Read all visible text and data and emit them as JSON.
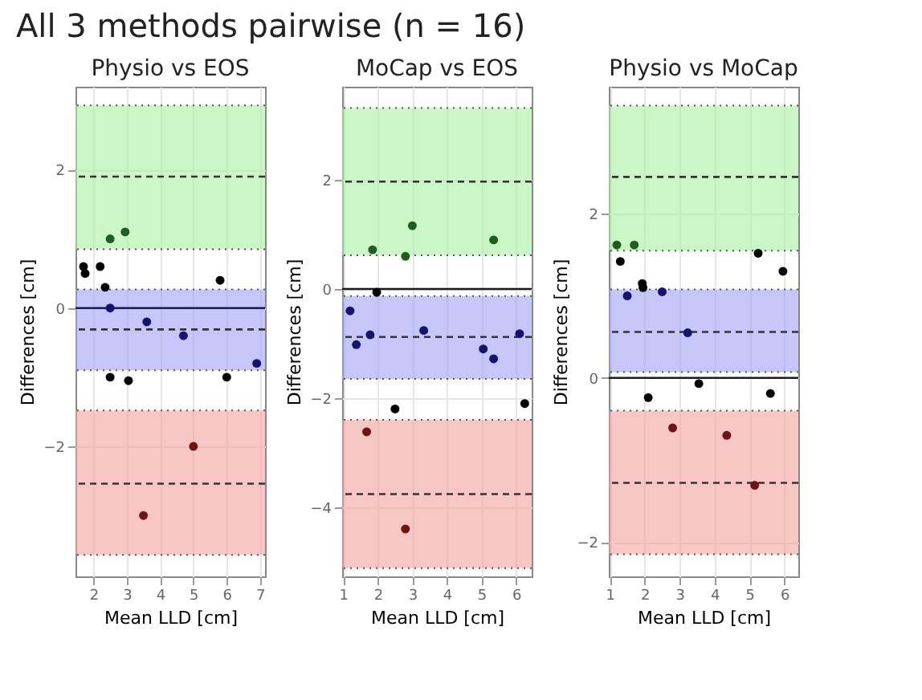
{
  "chart_data": [
    {
      "type": "scatter",
      "title": "Physio vs EOS",
      "xlabel": "Mean LLD [cm]",
      "ylabel": "Differences [cm]",
      "annotations": [
        "All 3 methods pairwise (n = 16)"
      ],
      "xlim": [
        1.46,
        7.15
      ],
      "ylim": [
        -3.88,
        3.2
      ],
      "xticks": [
        2,
        3,
        4,
        5,
        6,
        7
      ],
      "yticks": [
        -2,
        0,
        2
      ],
      "grid": true,
      "marker": "circle",
      "series": [
        {
          "color": "#000000",
          "x": [
            1.7,
            1.75,
            2.2,
            2.35,
            2.5,
            3.05,
            5.8,
            6.0
          ],
          "values": [
            0.6,
            0.5,
            0.6,
            0.3,
            -1.0,
            -1.05,
            0.4,
            -1.0
          ]
        },
        {
          "color": "#1f5e1f",
          "x": [
            2.5,
            2.95
          ],
          "values": [
            1.0,
            1.1
          ]
        },
        {
          "color": "#14146e",
          "x": [
            2.5,
            3.6,
            4.7,
            6.9
          ],
          "values": [
            0,
            -0.2,
            -0.4,
            -0.8
          ]
        },
        {
          "color": "#6e1414",
          "x": [
            5.0,
            3.5
          ],
          "values": [
            -2.0,
            -3.0
          ]
        }
      ],
      "bands": [
        {
          "axis": "y",
          "from": 0.85,
          "to": 2.93,
          "color": "#a8f0a0"
        },
        {
          "axis": "y",
          "from": -0.9,
          "to": 0.27,
          "color": "#a0a0f5"
        },
        {
          "axis": "y",
          "from": -3.57,
          "to": -1.48,
          "color": "#f5a0a0"
        }
      ],
      "ref_lines": [
        {
          "axis": "y",
          "value": 0,
          "color": "#1a1a5a",
          "line_style": "solid"
        },
        {
          "axis": "y",
          "value": 1.9,
          "color": "#333333",
          "line_style": "dashed"
        },
        {
          "axis": "y",
          "value": -0.31,
          "color": "#333333",
          "line_style": "dashed"
        },
        {
          "axis": "y",
          "value": -2.54,
          "color": "#333333",
          "line_style": "dashed"
        }
      ]
    },
    {
      "type": "scatter",
      "title": "MoCap vs EOS",
      "xlabel": "Mean LLD [cm]",
      "ylabel": "Differences [cm]",
      "xlim": [
        0.97,
        6.45
      ],
      "ylim": [
        -5.27,
        3.71
      ],
      "xticks": [
        1,
        2,
        3,
        4,
        5,
        6
      ],
      "yticks": [
        -4,
        -2,
        0,
        2
      ],
      "grid": true,
      "marker": "circle",
      "series": [
        {
          "color": "#000000",
          "x": [
            1.97,
            2.5,
            6.25
          ],
          "values": [
            -0.06,
            -2.2,
            -2.1
          ]
        },
        {
          "color": "#1f5e1f",
          "x": [
            1.85,
            2.8,
            3.0,
            5.35
          ],
          "values": [
            0.72,
            0.6,
            1.16,
            0.9
          ]
        },
        {
          "color": "#14146e",
          "x": [
            1.2,
            1.38,
            1.78,
            3.33,
            5.05,
            5.35,
            6.1
          ],
          "values": [
            -0.4,
            -1.02,
            -0.84,
            -0.76,
            -1.1,
            -1.28,
            -0.82
          ]
        },
        {
          "color": "#6e1414",
          "x": [
            1.68,
            2.8
          ],
          "values": [
            -2.62,
            -4.4
          ]
        }
      ],
      "bands": [
        {
          "axis": "y",
          "from": 0.62,
          "to": 3.32,
          "color": "#a8f0a0"
        },
        {
          "axis": "y",
          "from": -1.65,
          "to": -0.13,
          "color": "#a0a0f5"
        },
        {
          "axis": "y",
          "from": -5.12,
          "to": -2.4,
          "color": "#f5a0a0"
        }
      ],
      "ref_lines": [
        {
          "axis": "y",
          "value": 0,
          "color": "#1a1a1a",
          "line_style": "solid"
        },
        {
          "axis": "y",
          "value": 1.97,
          "color": "#333333",
          "line_style": "dashed"
        },
        {
          "axis": "y",
          "value": -0.88,
          "color": "#333333",
          "line_style": "dashed"
        },
        {
          "axis": "y",
          "value": -3.76,
          "color": "#333333",
          "line_style": "dashed"
        }
      ]
    },
    {
      "type": "scatter",
      "title": "Physio vs MoCap",
      "xlabel": "Mean LLD [cm]",
      "ylabel": "Differences [cm]",
      "xlim": [
        0.97,
        6.4
      ],
      "ylim": [
        -2.42,
        3.55
      ],
      "xticks": [
        1,
        2,
        3,
        4,
        5,
        6
      ],
      "yticks": [
        -2,
        0,
        2
      ],
      "grid": true,
      "marker": "circle",
      "series": [
        {
          "color": "#000000",
          "x": [
            1.3,
            1.93,
            1.95,
            5.25,
            5.96,
            2.1,
            3.55,
            5.6
          ],
          "values": [
            1.42,
            1.15,
            1.1,
            1.52,
            1.3,
            -0.24,
            -0.07,
            -0.19
          ]
        },
        {
          "color": "#1f5e1f",
          "x": [
            1.2,
            1.7
          ],
          "values": [
            1.62,
            1.62
          ]
        },
        {
          "color": "#14146e",
          "x": [
            1.5,
            2.5,
            3.23
          ],
          "values": [
            1.0,
            1.05,
            0.55
          ]
        },
        {
          "color": "#6e1414",
          "x": [
            2.8,
            4.35,
            5.15
          ],
          "values": [
            -0.61,
            -0.7,
            -1.31
          ]
        }
      ],
      "bands": [
        {
          "axis": "y",
          "from": 1.55,
          "to": 3.32,
          "color": "#a8f0a0"
        },
        {
          "axis": "y",
          "from": 0.07,
          "to": 1.08,
          "color": "#a0a0f5"
        },
        {
          "axis": "y",
          "from": -2.15,
          "to": -0.4,
          "color": "#f5a0a0"
        }
      ],
      "ref_lines": [
        {
          "axis": "y",
          "value": 0,
          "color": "#1a1a1a",
          "line_style": "solid"
        },
        {
          "axis": "y",
          "value": 2.45,
          "color": "#333333",
          "line_style": "dashed"
        },
        {
          "axis": "y",
          "value": 0.56,
          "color": "#333333",
          "line_style": "dashed"
        },
        {
          "axis": "y",
          "value": -1.28,
          "color": "#333333",
          "line_style": "dashed"
        }
      ]
    }
  ]
}
